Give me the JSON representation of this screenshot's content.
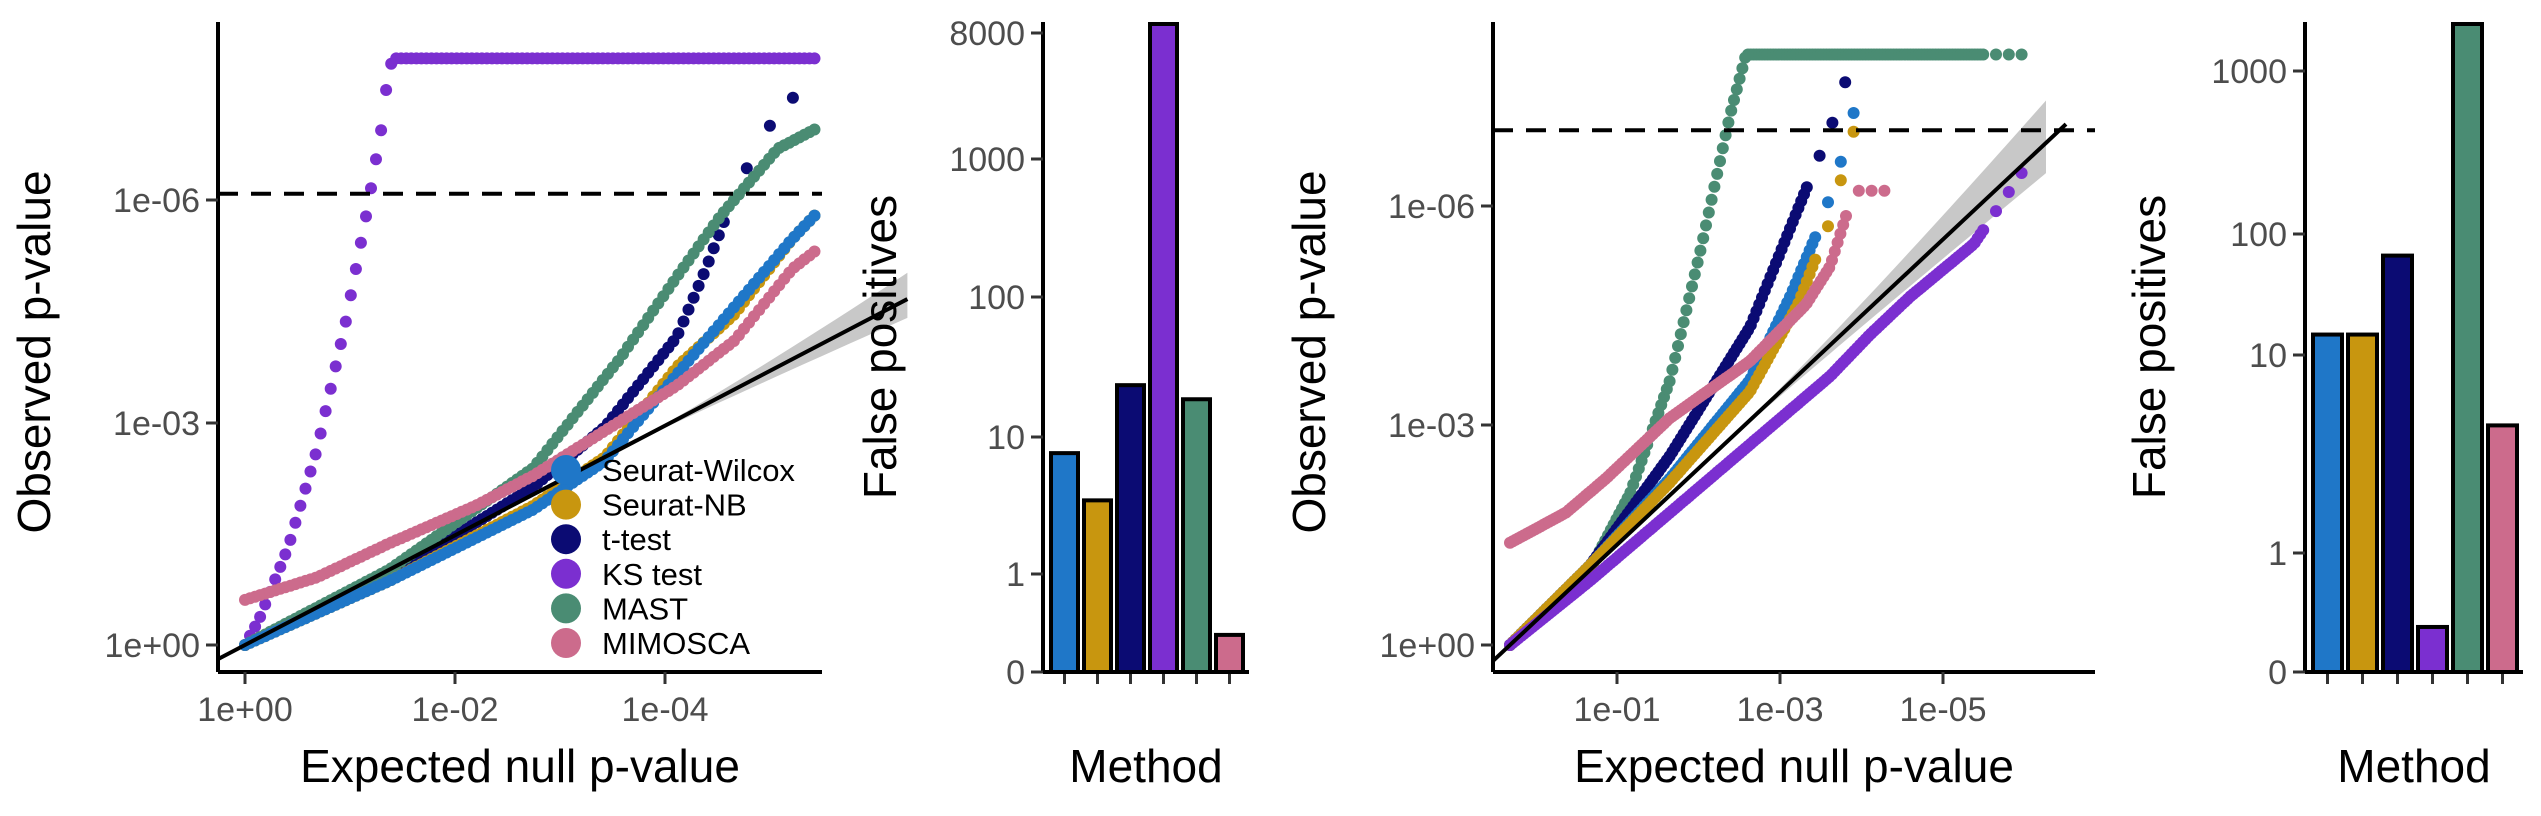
{
  "colors": {
    "Seurat-Wilcox": "#1f77c8",
    "Seurat-NB": "#c8960f",
    "t-test": "#0b0b73",
    "KS test": "#7b2fd0",
    "MAST": "#4a8c73",
    "MIMOSCA": "#cc6b8c",
    "band": "#c8c8c8",
    "threshold": "#000000"
  },
  "legend": {
    "items": [
      "Seurat-Wilcox",
      "Seurat-NB",
      "t-test",
      "KS test",
      "MAST",
      "MIMOSCA"
    ]
  },
  "chart_data": [
    {
      "id": "qq-left",
      "type": "scatter",
      "xlabel": "Expected null p-value",
      "ylabel": "Observed p-value",
      "x_scale": "-log10",
      "y_scale": "-log10",
      "x_ticks": [
        "1e+00",
        "1e-02",
        "1e-04"
      ],
      "y_ticks": [
        "1e+00",
        "1e-03",
        "1e-06"
      ],
      "xlim_neglog10": [
        -0.2,
        4.7
      ],
      "ylim_neglog10": [
        -0.3,
        8.0
      ],
      "threshold_neglog10": 6.0,
      "series": [
        {
          "name": "KS test",
          "knots": [
            [
              0,
              0
            ],
            [
              0.1,
              0.35
            ],
            [
              0.3,
              1.3
            ],
            [
              0.5,
              2.6
            ],
            [
              0.7,
              4.3
            ],
            [
              0.85,
              5.8
            ],
            [
              0.95,
              6.9
            ],
            [
              1.0,
              7.7
            ],
            [
              1.05,
              7.8
            ],
            [
              4.6,
              7.8
            ]
          ]
        },
        {
          "name": "t-test",
          "knots": [
            [
              0,
              0
            ],
            [
              1,
              0.9
            ],
            [
              2,
              2.1
            ],
            [
              2.5,
              2.9
            ],
            [
              3.0,
              4.1
            ],
            [
              3.2,
              5.0
            ],
            [
              3.4,
              6.0
            ],
            [
              3.6,
              6.8
            ],
            [
              3.9,
              7.5
            ]
          ]
        },
        {
          "name": "MAST",
          "knots": [
            [
              0,
              0
            ],
            [
              1,
              1.0
            ],
            [
              2,
              2.35
            ],
            [
              2.6,
              3.8
            ],
            [
              3.0,
              4.9
            ],
            [
              3.3,
              5.7
            ],
            [
              3.7,
              6.6
            ],
            [
              4.05,
              6.95
            ],
            [
              4.6,
              7.8
            ]
          ]
        },
        {
          "name": "Seurat-NB",
          "knots": [
            [
              0,
              0
            ],
            [
              1,
              0.85
            ],
            [
              2,
              1.85
            ],
            [
              2.5,
              2.5
            ],
            [
              3.0,
              3.7
            ],
            [
              3.4,
              4.4
            ],
            [
              3.8,
              5.4
            ],
            [
              4.1,
              6.0
            ],
            [
              4.3,
              6.6
            ],
            [
              4.6,
              7.1
            ]
          ]
        },
        {
          "name": "Seurat-Wilcox",
          "knots": [
            [
              0,
              0
            ],
            [
              1,
              0.85
            ],
            [
              2,
              1.8
            ],
            [
              2.5,
              2.45
            ],
            [
              3.0,
              3.6
            ],
            [
              3.4,
              4.5
            ],
            [
              3.8,
              5.4
            ],
            [
              4.1,
              6.0
            ],
            [
              4.3,
              6.8
            ],
            [
              4.6,
              7.3
            ]
          ]
        },
        {
          "name": "MIMOSCA",
          "knots": [
            [
              0,
              0.6
            ],
            [
              0.5,
              0.9
            ],
            [
              1,
              1.35
            ],
            [
              1.6,
              1.85
            ],
            [
              2,
              2.25
            ],
            [
              2.5,
              2.85
            ],
            [
              3.0,
              3.45
            ],
            [
              3.4,
              4.05
            ],
            [
              3.8,
              5.0
            ],
            [
              4.2,
              5.6
            ],
            [
              4.6,
              5.4
            ]
          ]
        }
      ]
    },
    {
      "id": "bar-left",
      "type": "bar",
      "xlabel": "Method",
      "ylabel": "False positives",
      "y_scale": "log1p",
      "y_ticks": [
        "0",
        "1",
        "10",
        "100",
        "1000",
        "8000"
      ],
      "y_tick_values": [
        0,
        1,
        10,
        100,
        1000,
        8000
      ],
      "categories": [
        "Seurat-Wilcox",
        "Seurat-NB",
        "t-test",
        "KS test",
        "MAST",
        "MIMOSCA"
      ],
      "values": [
        8,
        4,
        24,
        14000,
        19,
        0.3
      ]
    },
    {
      "id": "qq-right",
      "type": "scatter",
      "xlabel": "Expected null p-value",
      "ylabel": "Observed p-value",
      "x_scale": "-log10",
      "y_scale": "-log10",
      "x_ticks": [
        "1e-01",
        "1e-03",
        "1e-05"
      ],
      "y_ticks": [
        "1e+00",
        "1e-03",
        "1e-06"
      ],
      "xlim_neglog10": [
        -0.2,
        6.8
      ],
      "ylim_neglog10": [
        -0.3,
        8.2
      ],
      "threshold_neglog10": 6.8,
      "series": [
        {
          "name": "MAST",
          "knots": [
            [
              0,
              0
            ],
            [
              0.5,
              0.45
            ],
            [
              1,
              1.0
            ],
            [
              1.5,
              2.0
            ],
            [
              2,
              3.5
            ],
            [
              2.4,
              5.3
            ],
            [
              2.75,
              7.0
            ],
            [
              2.95,
              7.8
            ],
            [
              6.5,
              7.8
            ]
          ]
        },
        {
          "name": "t-test",
          "knots": [
            [
              0,
              0
            ],
            [
              1,
              1.05
            ],
            [
              2,
              2.5
            ],
            [
              3,
              4.2
            ],
            [
              3.5,
              5.5
            ],
            [
              4.0,
              6.8
            ],
            [
              4.3,
              7.8
            ]
          ]
        },
        {
          "name": "Seurat-Wilcox",
          "knots": [
            [
              0,
              0
            ],
            [
              1,
              1.05
            ],
            [
              2,
              2.2
            ],
            [
              3,
              3.5
            ],
            [
              3.5,
              4.6
            ],
            [
              3.9,
              5.6
            ],
            [
              4.2,
              6.6
            ],
            [
              4.4,
              7.5
            ]
          ]
        },
        {
          "name": "Seurat-NB",
          "knots": [
            [
              0,
              0
            ],
            [
              1,
              1.05
            ],
            [
              2,
              2.15
            ],
            [
              3,
              3.35
            ],
            [
              3.6,
              4.5
            ],
            [
              4.0,
              5.6
            ],
            [
              4.3,
              6.8
            ],
            [
              4.4,
              7.7
            ]
          ]
        },
        {
          "name": "MIMOSCA",
          "knots": [
            [
              0,
              1.35
            ],
            [
              0.7,
              1.75
            ],
            [
              1.2,
              2.2
            ],
            [
              2,
              3.0
            ],
            [
              3,
              3.75
            ],
            [
              3.7,
              4.5
            ],
            [
              4.0,
              5.0
            ],
            [
              4.3,
              6.0
            ],
            [
              4.8,
              6.0
            ]
          ]
        },
        {
          "name": "KS test",
          "knots": [
            [
              0,
              0
            ],
            [
              1,
              0.85
            ],
            [
              2,
              1.75
            ],
            [
              3,
              2.65
            ],
            [
              4,
              3.55
            ],
            [
              4.5,
              4.1
            ],
            [
              5.0,
              4.6
            ],
            [
              5.8,
              5.3
            ],
            [
              6.5,
              6.4
            ]
          ]
        }
      ]
    },
    {
      "id": "bar-right",
      "type": "bar",
      "xlabel": "Method",
      "ylabel": "False positives",
      "y_scale": "log1p",
      "y_ticks": [
        "0",
        "1",
        "10",
        "100",
        "1000"
      ],
      "y_tick_values": [
        0,
        1,
        10,
        100,
        1000
      ],
      "categories": [
        "Seurat-Wilcox",
        "Seurat-NB",
        "t-test",
        "KS test",
        "MAST",
        "MIMOSCA"
      ],
      "values": [
        15,
        15,
        67,
        0.3,
        2500,
        5
      ]
    }
  ]
}
